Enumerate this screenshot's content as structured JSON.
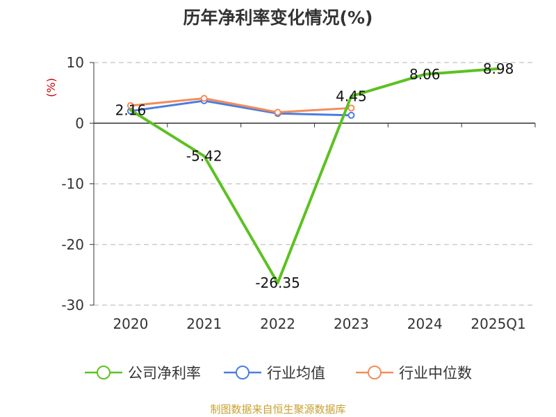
{
  "title": "历年净利率变化情况(%)",
  "source_note": "制图数据来自恒生聚源数据库",
  "chart_data": {
    "type": "line",
    "title": "历年净利率变化情况(%)",
    "ylabel": "(%)",
    "xlabel": "",
    "categories": [
      "2020",
      "2021",
      "2022",
      "2023",
      "2024",
      "2025Q1"
    ],
    "ylim": [
      -30,
      10
    ],
    "yticks": [
      10,
      0,
      -10,
      -20,
      -30
    ],
    "grid": true,
    "legend_position": "bottom",
    "series": [
      {
        "name": "公司净利率",
        "color": "#5cc121",
        "values": [
          2.16,
          -5.42,
          -26.35,
          4.45,
          8.06,
          8.98
        ],
        "labels": [
          "2.16",
          "-5.42",
          "-26.35",
          "4.45",
          "8.06",
          "8.98"
        ]
      },
      {
        "name": "行业均值",
        "color": "#4a7de0",
        "values": [
          2.0,
          3.7,
          1.6,
          1.3,
          null,
          null
        ]
      },
      {
        "name": "行业中位数",
        "color": "#f28c5a",
        "values": [
          2.9,
          4.1,
          1.8,
          2.5,
          null,
          null
        ]
      }
    ]
  }
}
